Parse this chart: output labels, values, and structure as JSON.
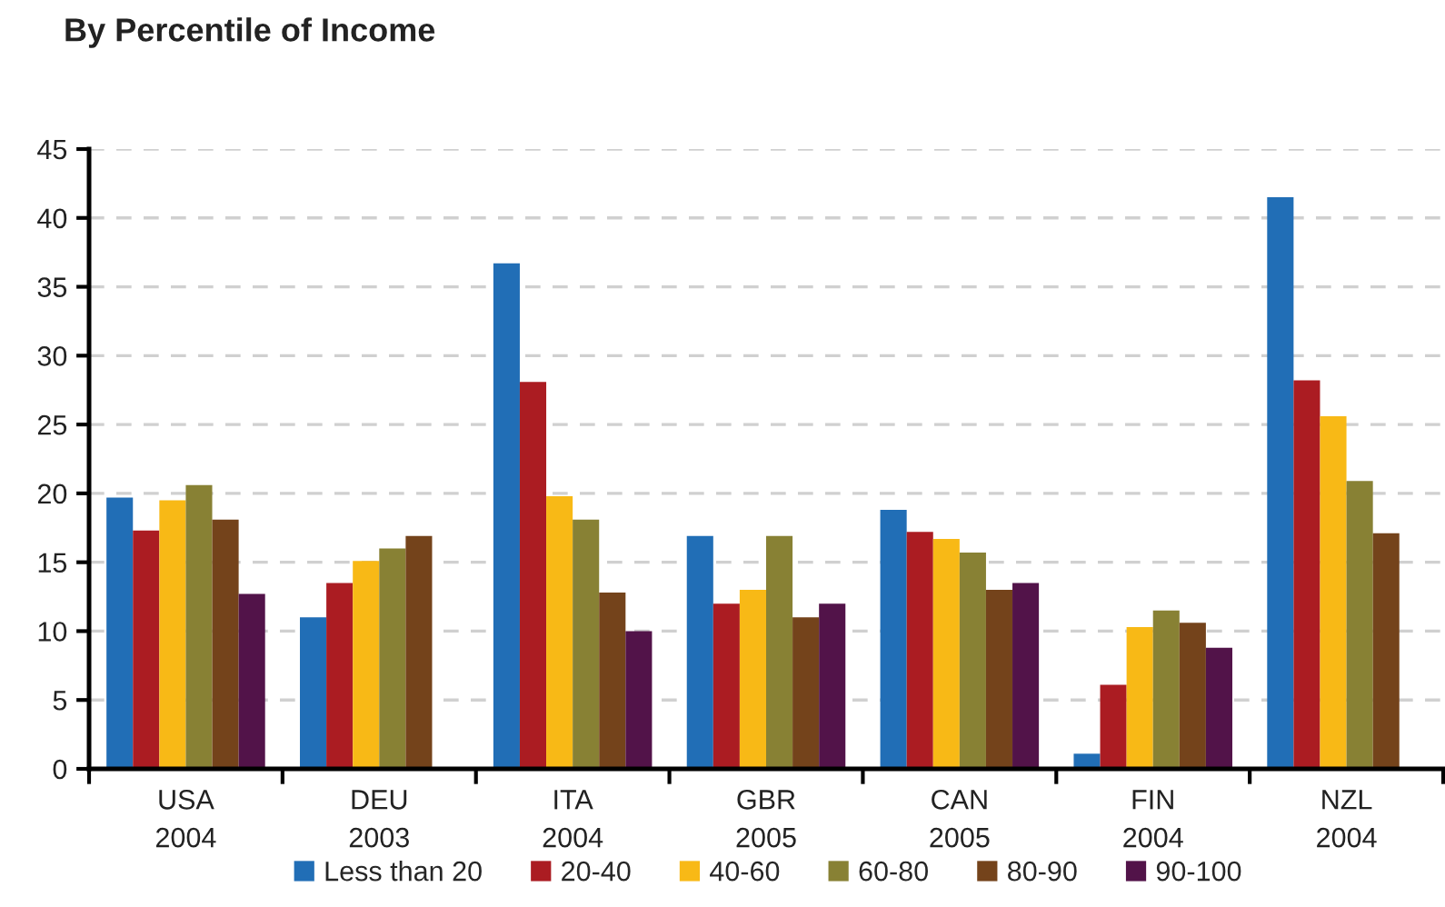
{
  "chart_data": {
    "type": "bar",
    "title": "By Percentile of Income",
    "categories": [
      "USA\n2004",
      "DEU\n2003",
      "ITA\n2004",
      "GBR\n2005",
      "CAN\n2005",
      "FIN\n2004",
      "NZL\n2004"
    ],
    "series": [
      {
        "name": "Less than 20",
        "color": "#216eb6",
        "values": [
          19.7,
          11.0,
          36.7,
          16.9,
          18.8,
          1.1,
          41.5
        ]
      },
      {
        "name": "20-40",
        "color": "#ab1c22",
        "values": [
          17.3,
          13.5,
          28.1,
          12.0,
          17.2,
          6.1,
          28.2
        ]
      },
      {
        "name": "40-60",
        "color": "#f8b916",
        "values": [
          19.5,
          15.1,
          19.8,
          13.0,
          16.7,
          10.3,
          25.6
        ]
      },
      {
        "name": "60-80",
        "color": "#888134",
        "values": [
          20.6,
          16.0,
          18.1,
          16.9,
          15.7,
          11.5,
          20.9
        ]
      },
      {
        "name": "80-90",
        "color": "#74431b",
        "values": [
          18.1,
          16.9,
          12.8,
          11.0,
          13.0,
          10.6,
          17.1
        ]
      },
      {
        "name": "90-100",
        "color": "#521349",
        "values": [
          12.7,
          null,
          10.0,
          12.0,
          13.5,
          8.8,
          null
        ]
      }
    ],
    "ylim": [
      0,
      45
    ],
    "yticks": [
      0,
      5,
      10,
      15,
      20,
      25,
      30,
      35,
      40,
      45
    ],
    "grid": "y",
    "legend": "bottom"
  }
}
